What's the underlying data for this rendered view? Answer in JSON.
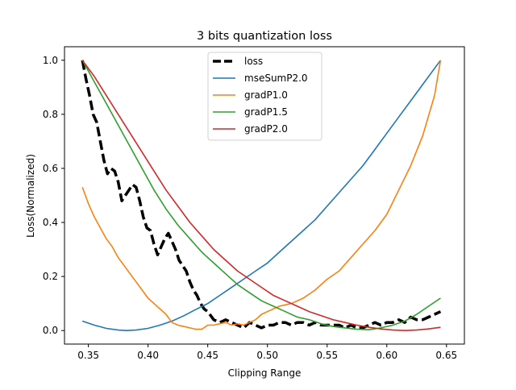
{
  "chart_data": {
    "type": "line",
    "title": "3 bits quantization loss",
    "xlabel": "Clipping Range",
    "ylabel": "Loss(Normalized)",
    "xlim": [
      0.33,
      0.665
    ],
    "ylim": [
      -0.05,
      1.05
    ],
    "xticks": [
      0.35,
      0.4,
      0.45,
      0.5,
      0.55,
      0.6,
      0.65
    ],
    "xtick_labels": [
      "0.35",
      "0.40",
      "0.45",
      "0.50",
      "0.55",
      "0.60",
      "0.65"
    ],
    "yticks": [
      0.0,
      0.2,
      0.4,
      0.6,
      0.8,
      1.0
    ],
    "ytick_labels": [
      "0.0",
      "0.2",
      "0.4",
      "0.6",
      "0.8",
      "1.0"
    ],
    "grid": false,
    "legend_position": "top-center",
    "series": [
      {
        "name": "loss",
        "color": "#000000",
        "style": "dashed",
        "x": [
          0.345,
          0.348,
          0.351,
          0.354,
          0.357,
          0.36,
          0.363,
          0.366,
          0.369,
          0.372,
          0.375,
          0.378,
          0.381,
          0.384,
          0.387,
          0.39,
          0.393,
          0.396,
          0.399,
          0.402,
          0.405,
          0.408,
          0.411,
          0.414,
          0.417,
          0.42,
          0.423,
          0.426,
          0.429,
          0.432,
          0.435,
          0.438,
          0.441,
          0.444,
          0.447,
          0.45,
          0.455,
          0.46,
          0.465,
          0.47,
          0.475,
          0.48,
          0.485,
          0.49,
          0.495,
          0.5,
          0.505,
          0.51,
          0.515,
          0.52,
          0.525,
          0.53,
          0.535,
          0.54,
          0.545,
          0.55,
          0.555,
          0.56,
          0.565,
          0.57,
          0.575,
          0.58,
          0.585,
          0.59,
          0.595,
          0.6,
          0.605,
          0.61,
          0.615,
          0.62,
          0.625,
          0.63,
          0.635,
          0.64,
          0.645
        ],
        "y": [
          1.0,
          0.93,
          0.87,
          0.8,
          0.77,
          0.7,
          0.63,
          0.58,
          0.6,
          0.59,
          0.55,
          0.48,
          0.5,
          0.52,
          0.54,
          0.53,
          0.48,
          0.42,
          0.38,
          0.37,
          0.32,
          0.28,
          0.31,
          0.34,
          0.36,
          0.33,
          0.3,
          0.26,
          0.24,
          0.22,
          0.18,
          0.15,
          0.13,
          0.1,
          0.08,
          0.07,
          0.04,
          0.03,
          0.04,
          0.03,
          0.02,
          0.01,
          0.03,
          0.02,
          0.01,
          0.02,
          0.02,
          0.03,
          0.03,
          0.02,
          0.03,
          0.03,
          0.02,
          0.03,
          0.02,
          0.02,
          0.02,
          0.02,
          0.01,
          0.02,
          0.01,
          0.01,
          0.02,
          0.03,
          0.02,
          0.03,
          0.03,
          0.04,
          0.03,
          0.05,
          0.04,
          0.04,
          0.05,
          0.06,
          0.07
        ]
      },
      {
        "name": "mseSumP2.0",
        "color": "#1f77b4",
        "style": "solid",
        "x": [
          0.345,
          0.355,
          0.365,
          0.375,
          0.382,
          0.39,
          0.4,
          0.41,
          0.42,
          0.43,
          0.44,
          0.45,
          0.46,
          0.47,
          0.48,
          0.49,
          0.5,
          0.51,
          0.52,
          0.53,
          0.54,
          0.55,
          0.56,
          0.57,
          0.58,
          0.59,
          0.6,
          0.61,
          0.62,
          0.63,
          0.64,
          0.645
        ],
        "y": [
          0.035,
          0.02,
          0.008,
          0.002,
          0.0,
          0.002,
          0.008,
          0.02,
          0.035,
          0.055,
          0.078,
          0.1,
          0.13,
          0.16,
          0.19,
          0.22,
          0.25,
          0.29,
          0.33,
          0.37,
          0.41,
          0.46,
          0.51,
          0.56,
          0.61,
          0.67,
          0.73,
          0.79,
          0.85,
          0.91,
          0.97,
          1.0
        ]
      },
      {
        "name": "gradP1.0",
        "color": "#ff7f0e",
        "style": "solid",
        "x": [
          0.345,
          0.35,
          0.355,
          0.36,
          0.365,
          0.37,
          0.375,
          0.38,
          0.385,
          0.39,
          0.395,
          0.4,
          0.405,
          0.41,
          0.415,
          0.42,
          0.425,
          0.43,
          0.435,
          0.44,
          0.445,
          0.45,
          0.455,
          0.46,
          0.465,
          0.47,
          0.475,
          0.48,
          0.485,
          0.49,
          0.495,
          0.5,
          0.51,
          0.52,
          0.53,
          0.54,
          0.55,
          0.56,
          0.57,
          0.58,
          0.59,
          0.6,
          0.61,
          0.62,
          0.63,
          0.64,
          0.645
        ],
        "y": [
          0.53,
          0.47,
          0.42,
          0.38,
          0.34,
          0.31,
          0.27,
          0.24,
          0.21,
          0.18,
          0.15,
          0.12,
          0.1,
          0.08,
          0.06,
          0.03,
          0.02,
          0.015,
          0.01,
          0.005,
          0.005,
          0.02,
          0.02,
          0.025,
          0.03,
          0.02,
          0.025,
          0.02,
          0.03,
          0.04,
          0.06,
          0.07,
          0.09,
          0.1,
          0.12,
          0.15,
          0.19,
          0.22,
          0.27,
          0.32,
          0.37,
          0.43,
          0.52,
          0.61,
          0.72,
          0.87,
          1.0
        ]
      },
      {
        "name": "gradP1.5",
        "color": "#2ca02c",
        "style": "solid",
        "x": [
          0.345,
          0.355,
          0.365,
          0.375,
          0.385,
          0.395,
          0.405,
          0.415,
          0.425,
          0.435,
          0.445,
          0.455,
          0.465,
          0.475,
          0.485,
          0.495,
          0.505,
          0.515,
          0.525,
          0.535,
          0.545,
          0.555,
          0.565,
          0.575,
          0.585,
          0.595,
          0.605,
          0.615,
          0.625,
          0.635,
          0.645
        ],
        "y": [
          1.0,
          0.92,
          0.84,
          0.76,
          0.68,
          0.6,
          0.52,
          0.45,
          0.39,
          0.34,
          0.29,
          0.25,
          0.21,
          0.17,
          0.14,
          0.11,
          0.09,
          0.07,
          0.05,
          0.04,
          0.025,
          0.015,
          0.01,
          0.005,
          0.003,
          0.01,
          0.02,
          0.035,
          0.06,
          0.09,
          0.12
        ]
      },
      {
        "name": "gradP2.0",
        "color": "#d62728",
        "style": "solid",
        "x": [
          0.345,
          0.355,
          0.365,
          0.375,
          0.385,
          0.395,
          0.405,
          0.415,
          0.425,
          0.435,
          0.445,
          0.455,
          0.465,
          0.475,
          0.485,
          0.495,
          0.505,
          0.515,
          0.525,
          0.535,
          0.545,
          0.555,
          0.565,
          0.575,
          0.585,
          0.595,
          0.605,
          0.615,
          0.625,
          0.635,
          0.645
        ],
        "y": [
          1.0,
          0.94,
          0.87,
          0.8,
          0.73,
          0.66,
          0.59,
          0.52,
          0.46,
          0.4,
          0.35,
          0.3,
          0.26,
          0.22,
          0.19,
          0.16,
          0.13,
          0.11,
          0.09,
          0.07,
          0.055,
          0.04,
          0.03,
          0.02,
          0.012,
          0.006,
          0.002,
          0.0,
          0.002,
          0.006,
          0.012
        ]
      }
    ]
  }
}
